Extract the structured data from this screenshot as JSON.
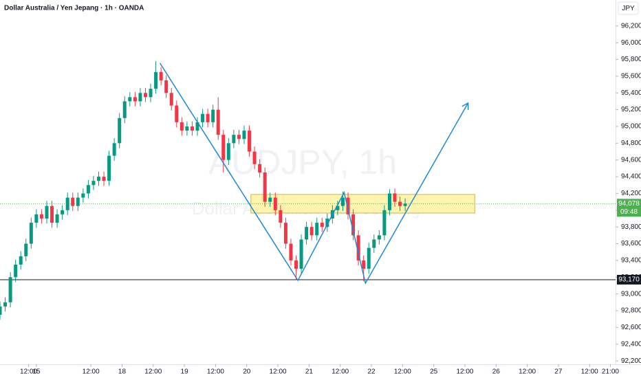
{
  "chart_data": {
    "type": "candlestick",
    "title": "Dollar Australia / Yen Jepang · 1h · OANDA",
    "watermark": "AUDJPY, 1h",
    "watermark_subtitle": "Dollar Australia / Yen Jepang",
    "currency": "JPY",
    "up_color": "#089981",
    "down_color": "#f23645",
    "x": [
      1,
      3,
      5,
      7,
      9,
      11,
      13,
      15,
      17,
      19,
      21,
      23,
      25,
      27,
      29,
      31,
      33,
      35,
      37,
      39,
      41,
      43,
      45,
      47,
      49,
      51,
      53,
      55,
      57,
      59,
      61,
      63,
      65,
      67,
      69,
      71,
      73,
      75,
      77,
      79,
      81,
      83,
      85,
      87,
      89,
      91,
      93,
      95,
      97,
      99,
      101,
      103,
      105,
      107,
      109,
      111,
      113,
      115,
      117,
      119,
      121,
      123,
      125,
      127,
      129,
      131,
      133,
      135,
      137,
      139,
      141,
      143,
      145,
      147,
      149,
      151,
      153,
      155,
      157
    ],
    "open": [
      92750,
      92850,
      92900,
      93200,
      93350,
      93450,
      93600,
      93850,
      93950,
      93900,
      94050,
      93850,
      93950,
      94000,
      94150,
      94050,
      94150,
      94200,
      94300,
      94350,
      94400,
      94350,
      94650,
      94800,
      95100,
      95300,
      95350,
      95300,
      95400,
      95350,
      95450,
      95650,
      95550,
      95400,
      95250,
      95050,
      94950,
      95000,
      94950,
      95050,
      95150,
      95050,
      95200,
      94900,
      94600,
      94800,
      94900,
      94850,
      94950,
      94700,
      94550,
      94450,
      94100,
      94150,
      94000,
      93850,
      93600,
      93400,
      93300,
      93650,
      93800,
      93700,
      93850,
      93800,
      93900,
      94000,
      94050,
      94150,
      93950,
      93700,
      93400,
      93300,
      93550,
      93650,
      93700,
      94000,
      94200,
      94100,
      94050
    ],
    "high": [
      92910,
      92960,
      93260,
      93410,
      93510,
      93660,
      93910,
      94010,
      94010,
      94110,
      94110,
      94010,
      94060,
      94210,
      94210,
      94210,
      94260,
      94360,
      94410,
      94460,
      94460,
      94710,
      94860,
      95160,
      95360,
      95410,
      95410,
      95460,
      95460,
      95510,
      95780,
      95710,
      95610,
      95460,
      95310,
      95110,
      95060,
      95060,
      95110,
      95210,
      95210,
      95260,
      95350,
      94960,
      94860,
      94960,
      94960,
      95010,
      95010,
      94760,
      94610,
      94510,
      94210,
      94210,
      94060,
      93910,
      93660,
      93460,
      93710,
      93860,
      93860,
      93910,
      93910,
      93960,
      94060,
      94110,
      94220,
      94210,
      94010,
      93760,
      93460,
      93610,
      93710,
      93760,
      94060,
      94250,
      94260,
      94160,
      94140
    ],
    "low": [
      92690,
      92790,
      92840,
      93140,
      93290,
      93390,
      93540,
      93790,
      93840,
      93840,
      93790,
      93790,
      93890,
      93940,
      93990,
      93990,
      94090,
      94140,
      94240,
      94290,
      94290,
      94290,
      94590,
      94740,
      95040,
      95240,
      95240,
      95240,
      95290,
      95290,
      95390,
      95490,
      95340,
      95190,
      94990,
      94890,
      94890,
      94890,
      94890,
      94990,
      94990,
      94990,
      94840,
      94450,
      94540,
      94740,
      94790,
      94790,
      94640,
      94490,
      94390,
      94040,
      94040,
      93940,
      93790,
      93540,
      93340,
      93170,
      93240,
      93590,
      93640,
      93640,
      93740,
      93740,
      93840,
      93940,
      93990,
      93890,
      93640,
      93340,
      93150,
      93240,
      93490,
      93590,
      93640,
      93940,
      94040,
      93990,
      93990
    ],
    "close": [
      92850,
      92900,
      93200,
      93350,
      93450,
      93600,
      93850,
      93950,
      93900,
      94050,
      93850,
      93950,
      94000,
      94150,
      94050,
      94150,
      94200,
      94300,
      94350,
      94400,
      94350,
      94650,
      94800,
      95100,
      95300,
      95350,
      95300,
      95400,
      95350,
      95450,
      95650,
      95550,
      95400,
      95250,
      95050,
      94950,
      95000,
      94950,
      95050,
      95150,
      95050,
      95200,
      94900,
      94600,
      94800,
      94900,
      94850,
      94950,
      94700,
      94550,
      94450,
      94100,
      94150,
      94000,
      93850,
      93600,
      93400,
      93300,
      93650,
      93800,
      93700,
      93850,
      93800,
      93900,
      94000,
      94050,
      94150,
      93950,
      93700,
      93400,
      93300,
      93550,
      93650,
      93700,
      94000,
      94200,
      94100,
      94050,
      94078
    ],
    "xlim": [
      1,
      238
    ],
    "ylim": [
      92160,
      96510
    ],
    "xticks": [
      {
        "value": 12,
        "label": "12:00"
      },
      15,
      {
        "value": 36,
        "label": "12:00"
      },
      {
        "value": 48,
        "label": "18"
      },
      {
        "value": 60,
        "label": "12:00"
      },
      {
        "value": 72,
        "label": "19"
      },
      {
        "value": 84,
        "label": "12:00"
      },
      {
        "value": 96,
        "label": "20"
      },
      {
        "value": 108,
        "label": "12:00"
      },
      {
        "value": 120,
        "label": "21"
      },
      {
        "value": 132,
        "label": "12:00"
      },
      {
        "value": 144,
        "label": "22"
      },
      {
        "value": 156,
        "label": "12:00"
      },
      {
        "value": 168,
        "label": "25"
      },
      {
        "value": 180,
        "label": "12:00"
      },
      {
        "value": 192,
        "label": "26"
      },
      {
        "value": 204,
        "label": "12:00"
      },
      {
        "value": 216,
        "label": "27"
      },
      {
        "value": 228,
        "label": "12:00"
      },
      {
        "value": 236,
        "label": "21:00"
      }
    ],
    "yticks": [
      {
        "value": 92200,
        "label": "92,200"
      },
      {
        "value": 92400,
        "label": "92,400"
      },
      {
        "value": 92600,
        "label": "92,600"
      },
      {
        "value": 92800,
        "label": "92,800"
      },
      {
        "value": 93000,
        "label": "93,000"
      },
      {
        "value": 93200,
        "label": "93,200"
      },
      {
        "value": 93400,
        "label": "93,400"
      },
      {
        "value": 93600,
        "label": "93,600"
      },
      {
        "value": 93800,
        "label": "93,800"
      },
      {
        "value": 94000,
        "label": "94,000"
      },
      {
        "value": 94200,
        "label": "94,200"
      },
      {
        "value": 94400,
        "label": "94,400"
      },
      {
        "value": 94600,
        "label": "94,600"
      },
      {
        "value": 94800,
        "label": "94,800"
      },
      {
        "value": 95000,
        "label": "95,000"
      },
      {
        "value": 95200,
        "label": "95,200"
      },
      {
        "value": 95400,
        "label": "95,400"
      },
      {
        "value": 95600,
        "label": "95,600"
      },
      {
        "value": 95800,
        "label": "95,800"
      },
      {
        "value": 96000,
        "label": "96,000"
      },
      {
        "value": 96200,
        "label": "96,200"
      }
    ],
    "price_line": {
      "value": 94078,
      "label": "94,078",
      "countdown": "09:48",
      "color": "#4caf50"
    },
    "support_line": {
      "value": 93170,
      "label": "93,170",
      "color": "#131722"
    },
    "zone": {
      "x": [
        97.6,
        183.8
      ],
      "y": [
        93966,
        94188
      ],
      "color": "#fff3b0"
    },
    "pattern": {
      "x": [
        62.6,
        115.7,
        133.5,
        141.7,
        181.2
      ],
      "y": [
        95756,
        93161,
        94212,
        93128,
        95280
      ],
      "color": "#1e88d2"
    }
  }
}
